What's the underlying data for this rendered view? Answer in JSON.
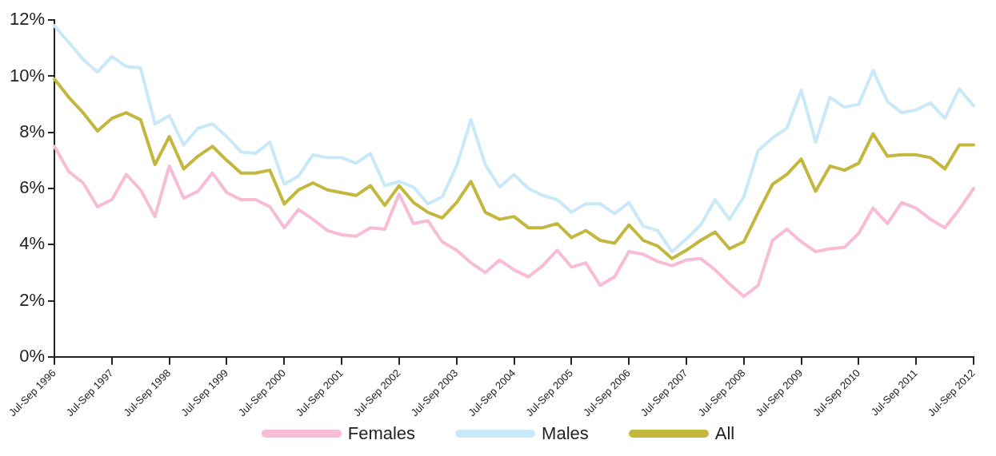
{
  "chart_data": {
    "type": "line",
    "categories": [
      "Jul-Sep 1996",
      null,
      null,
      null,
      "Jul-Sep 1997",
      null,
      null,
      null,
      "Jul-Sep 1998",
      null,
      null,
      null,
      "Jul-Sep 1999",
      null,
      null,
      null,
      "Jul-Sep 2000",
      null,
      null,
      null,
      "Jul-Sep 2001",
      null,
      null,
      null,
      "Jul-Sep 2002",
      null,
      null,
      null,
      "Jul-Sep 2003",
      null,
      null,
      null,
      "Jul-Sep 2004",
      null,
      null,
      null,
      "Jul-Sep 2005",
      null,
      null,
      null,
      "Jul-Sep 2006",
      null,
      null,
      null,
      "Jul-Sep 2007",
      null,
      null,
      null,
      "Jul-Sep 2008",
      null,
      null,
      null,
      "Jul-Sep 2009",
      null,
      null,
      null,
      "Jul-Sep 2010",
      null,
      null,
      null,
      "Jul-Sep 2011",
      null,
      null,
      null,
      "Jul-Sep 2012"
    ],
    "series": [
      {
        "name": "Females",
        "color": "#f7bcd6",
        "values": [
          7.5,
          6.6,
          6.2,
          5.35,
          5.6,
          6.5,
          5.95,
          5.0,
          6.8,
          5.65,
          5.9,
          6.55,
          5.85,
          5.6,
          5.6,
          5.35,
          4.6,
          5.25,
          4.9,
          4.5,
          4.35,
          4.3,
          4.6,
          4.55,
          5.8,
          4.75,
          4.85,
          4.1,
          3.8,
          3.35,
          3.0,
          3.45,
          3.1,
          2.85,
          3.25,
          3.8,
          3.2,
          3.35,
          2.55,
          2.85,
          3.75,
          3.65,
          3.4,
          3.25,
          3.45,
          3.5,
          3.1,
          2.6,
          2.15,
          2.55,
          4.15,
          4.55,
          4.1,
          3.75,
          3.85,
          3.9,
          4.4,
          5.3,
          4.75,
          5.5,
          5.3,
          4.9,
          4.6,
          5.25,
          6.0
        ]
      },
      {
        "name": "Males",
        "color": "#c9e9f8",
        "values": [
          11.8,
          11.2,
          10.6,
          10.15,
          10.7,
          10.35,
          10.3,
          8.3,
          8.6,
          7.55,
          8.15,
          8.3,
          7.85,
          7.3,
          7.25,
          7.65,
          6.15,
          6.45,
          7.2,
          7.1,
          7.1,
          6.9,
          7.25,
          6.1,
          6.25,
          6.05,
          5.45,
          5.7,
          6.8,
          8.45,
          6.85,
          6.05,
          6.5,
          6.0,
          5.75,
          5.6,
          5.15,
          5.45,
          5.45,
          5.1,
          5.5,
          4.65,
          4.5,
          3.75,
          4.2,
          4.7,
          5.6,
          4.9,
          5.7,
          7.35,
          7.8,
          8.15,
          9.5,
          7.65,
          9.25,
          8.9,
          9.0,
          10.2,
          9.1,
          8.7,
          8.8,
          9.05,
          8.5,
          9.55,
          8.95
        ]
      },
      {
        "name": "All",
        "color": "#c4b73e",
        "values": [
          9.9,
          9.25,
          8.7,
          8.05,
          8.5,
          8.7,
          8.45,
          6.85,
          7.85,
          6.7,
          7.15,
          7.5,
          7.0,
          6.55,
          6.55,
          6.65,
          5.45,
          5.95,
          6.2,
          5.95,
          5.85,
          5.75,
          6.1,
          5.4,
          6.1,
          5.5,
          5.15,
          4.95,
          5.5,
          6.25,
          5.15,
          4.9,
          5.0,
          4.6,
          4.6,
          4.75,
          4.25,
          4.5,
          4.15,
          4.05,
          4.7,
          4.15,
          3.95,
          3.5,
          3.8,
          4.15,
          4.45,
          3.85,
          4.1,
          5.15,
          6.15,
          6.5,
          7.05,
          5.9,
          6.8,
          6.65,
          6.9,
          7.95,
          7.15,
          7.2,
          7.2,
          7.1,
          6.7,
          7.55,
          7.55
        ]
      }
    ],
    "ylim": [
      0,
      12
    ],
    "yticks": [
      {
        "value": 0,
        "label": "0%"
      },
      {
        "value": 2,
        "label": "2%"
      },
      {
        "value": 4,
        "label": "4%"
      },
      {
        "value": 6,
        "label": "6%"
      },
      {
        "value": 8,
        "label": "8%"
      },
      {
        "value": 10,
        "label": "10%"
      },
      {
        "value": 12,
        "label": "12%"
      }
    ],
    "grid": false,
    "legend": "bottom",
    "marker": "none",
    "line_style": "solid"
  }
}
